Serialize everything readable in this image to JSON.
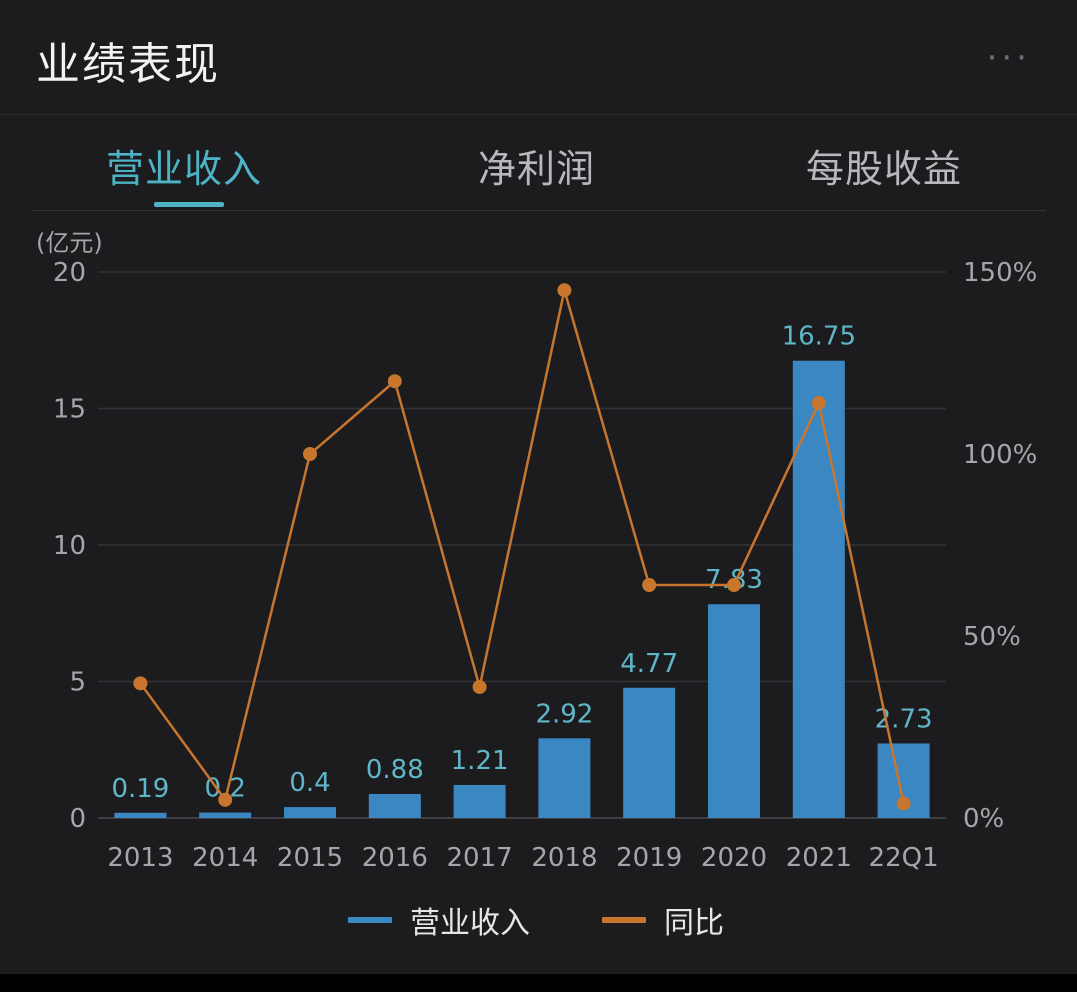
{
  "header": {
    "title": "业绩表现",
    "more_label": "···"
  },
  "tabs": [
    {
      "label": "营业收入",
      "active": true
    },
    {
      "label": "净利润",
      "active": false
    },
    {
      "label": "每股收益",
      "active": false
    }
  ],
  "chart_data": {
    "type": "bar",
    "unit_label": "(亿元)",
    "categories": [
      "2013",
      "2014",
      "2015",
      "2016",
      "2017",
      "2018",
      "2019",
      "2020",
      "2021",
      "22Q1"
    ],
    "series": [
      {
        "name": "营业收入",
        "type": "bar",
        "axis": "left",
        "color": "#3a87c2",
        "values": [
          0.19,
          0.2,
          0.4,
          0.88,
          1.21,
          2.92,
          4.77,
          7.83,
          16.75,
          2.73
        ]
      },
      {
        "name": "同比",
        "type": "line",
        "axis": "right",
        "color": "#c8762e",
        "values": [
          37,
          5,
          100,
          120,
          36,
          145,
          64,
          64,
          114,
          4
        ]
      }
    ],
    "y_left": {
      "min": 0,
      "max": 20,
      "ticks": [
        "0",
        "5",
        "10",
        "15",
        "20"
      ]
    },
    "y_right": {
      "min": 0,
      "max": 150,
      "ticks": [
        "0%",
        "50%",
        "100%",
        "150%"
      ]
    },
    "data_labels": [
      "0.19",
      "0.2",
      "0.4",
      "0.88",
      "1.21",
      "2.92",
      "4.77",
      "7.83",
      "16.75",
      "2.73"
    ],
    "data_label_color": "#5fb6c8",
    "grid": true,
    "legend_position": "bottom-center"
  }
}
